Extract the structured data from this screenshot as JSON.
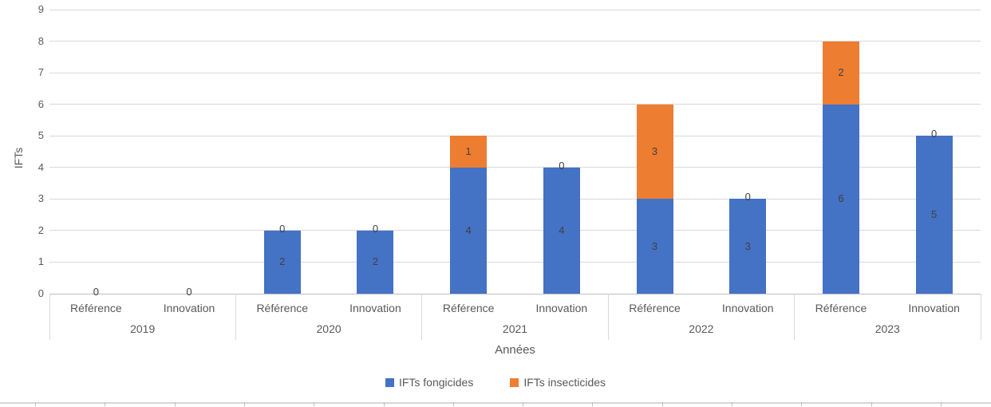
{
  "chart_data": {
    "type": "bar",
    "stacked": true,
    "title": "",
    "ylabel": "IFTs",
    "xlabel": "Années",
    "ylim": [
      0,
      9
    ],
    "ytick_step": 1,
    "grid": true,
    "data_labels": true,
    "legend_position": "bottom",
    "group_labels": [
      "2019",
      "2020",
      "2021",
      "2022",
      "2023"
    ],
    "subcategories": [
      "Référence",
      "Innovation"
    ],
    "series": [
      {
        "name": "IFTs fongicides",
        "color": "#4472C4",
        "values": [
          0,
          0,
          2,
          2,
          4,
          4,
          3,
          3,
          6,
          5
        ]
      },
      {
        "name": "IFTs insecticides",
        "color": "#ED7D31",
        "values": [
          0,
          0,
          0,
          0,
          1,
          0,
          3,
          0,
          2,
          0
        ]
      }
    ],
    "stack_totals": [
      0,
      0,
      2,
      2,
      5,
      4,
      6,
      3,
      8,
      5
    ]
  }
}
